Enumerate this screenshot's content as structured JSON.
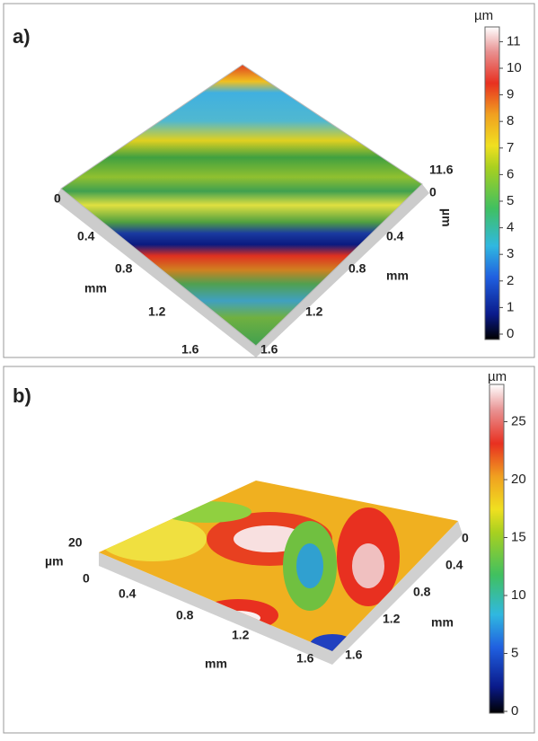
{
  "panels": [
    {
      "label": "a)",
      "colorbar": {
        "unit": "µm",
        "ticks": [
          0,
          1,
          2,
          3,
          4,
          5,
          6,
          7,
          8,
          9,
          10,
          11
        ]
      },
      "z_axis": {
        "label": "µm",
        "ticks": [
          0,
          11.6
        ]
      },
      "x_axis": {
        "label": "mm",
        "ticks": [
          0,
          0.4,
          0.8,
          1.2,
          1.6
        ]
      },
      "y_axis": {
        "label": "mm",
        "ticks": [
          0.4,
          0.8,
          1.2,
          1.6
        ]
      }
    },
    {
      "label": "b)",
      "colorbar": {
        "unit": "µm",
        "ticks": [
          0,
          5,
          10,
          15,
          20,
          25
        ]
      },
      "z_axis": {
        "label": "µm",
        "ticks": [
          0,
          20
        ]
      },
      "x_axis": {
        "label": "mm",
        "ticks": [
          0.4,
          0.8,
          1.2,
          1.6
        ]
      },
      "y_axis": {
        "label": "mm",
        "ticks": [
          0,
          0.4,
          0.8,
          1.2,
          1.6
        ]
      }
    }
  ]
}
